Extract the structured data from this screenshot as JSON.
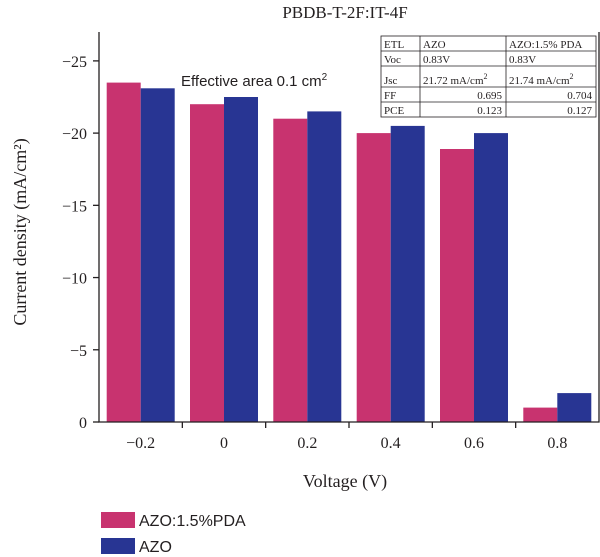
{
  "chart_data": {
    "type": "bar",
    "title": "PBDB-T-2F:IT-4F",
    "xlabel": "Voltage (V)",
    "ylabel": "Current density (mA/cm²)",
    "categories": [
      "−0.2",
      "0",
      "0.2",
      "0.4",
      "0.6",
      "0.8"
    ],
    "series": [
      {
        "name": "AZO:1.5%PDA",
        "color": "#c8336f",
        "values": [
          -23.5,
          -22.0,
          -21.0,
          -20.0,
          -18.9,
          -1.0
        ]
      },
      {
        "name": "AZO",
        "color": "#283593",
        "values": [
          -23.1,
          -22.5,
          -21.5,
          -20.5,
          -20.0,
          -2.0
        ]
      }
    ],
    "ylim": [
      0,
      -27
    ],
    "yticks": [
      0,
      -5,
      -10,
      -15,
      -20,
      -25
    ],
    "ytick_labels": [
      "0",
      "−5",
      "−10",
      "−15",
      "−20",
      "−25"
    ],
    "y_inverted": true,
    "grid": false,
    "legend_placement": "below-left",
    "annotation": {
      "text": "Effective area 0.1 cm",
      "superscript": "2"
    },
    "inset_table": {
      "rows": [
        [
          "ETL",
          "AZO",
          "AZO:1.5% PDA"
        ],
        [
          "Voc",
          "0.83V",
          "0.83V"
        ],
        [
          "Jsc",
          "21.72 mA/cm2",
          "21.74 mA/cm2"
        ],
        [
          "FF",
          "0.695",
          "0.704"
        ],
        [
          "PCE",
          "0.123",
          "0.127"
        ]
      ]
    }
  }
}
